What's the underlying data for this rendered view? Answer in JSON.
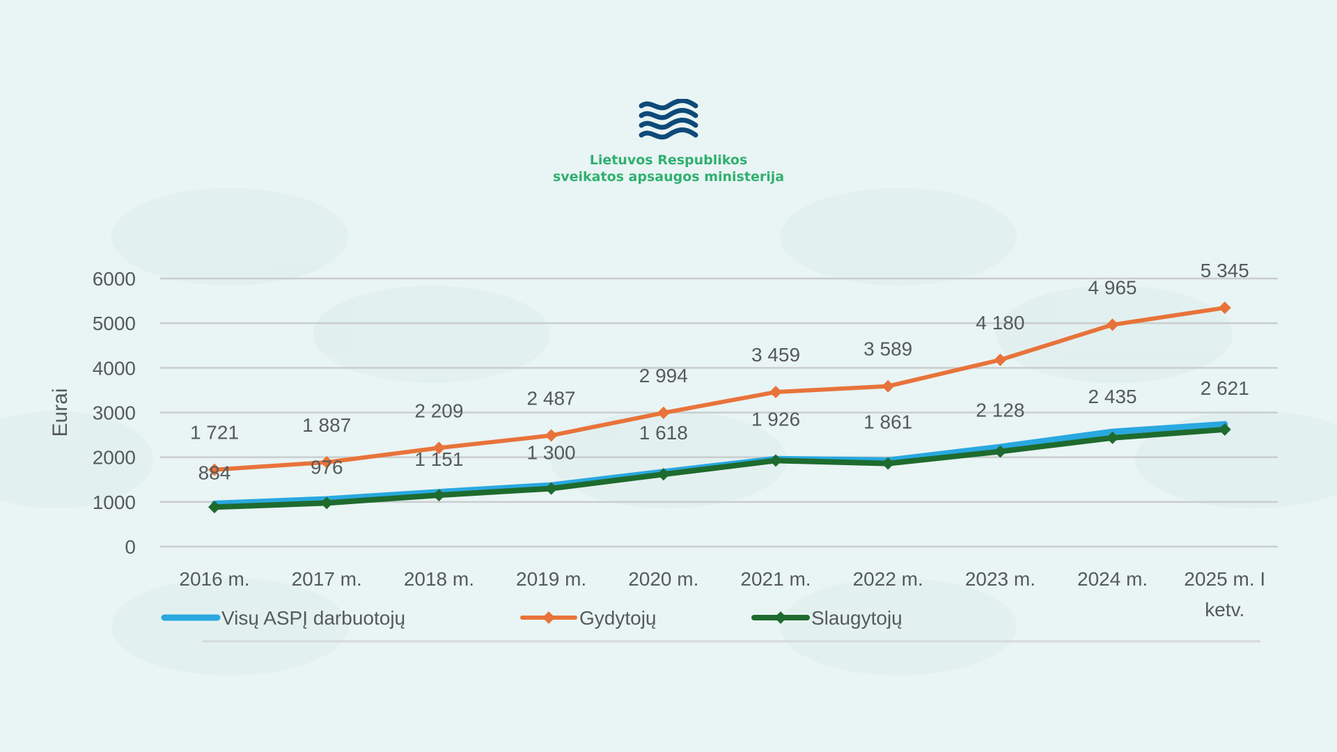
{
  "header": {
    "org_line1": "Lietuvos Respublikos",
    "org_line2": "sveikatos apsaugos ministerija",
    "logo_icon": "ministry-waves-logo"
  },
  "colors": {
    "background": "#e9f4f4",
    "accent_green": "#2fb070",
    "logo_blue": "#0d4a78",
    "series_all": "#29a8e0",
    "series_doctors": "#e8733a",
    "series_nurses": "#1e6b2e",
    "grid": "#c9cdcd",
    "text": "#555a5a"
  },
  "chart_data": {
    "type": "line",
    "ylabel": "Eurai",
    "xlabel": "",
    "ylim": [
      0,
      6000
    ],
    "y_ticks": [
      "6000",
      "5000",
      "4000",
      "3000",
      "2000",
      "1000",
      "0"
    ],
    "categories": [
      "2016 m.",
      "2017 m.",
      "2018 m.",
      "2019 m.",
      "2020 m.",
      "2021 m.",
      "2022 m.",
      "2023 m.",
      "2024 m.",
      "2025 m. I ketv."
    ],
    "series": [
      {
        "name": "Visų ASPĮ darbuotojų",
        "values": [
          960,
          1060,
          1220,
          1370,
          1670,
          1960,
          1930,
          2230,
          2570,
          2740
        ],
        "labels": []
      },
      {
        "name": "Gydytojų",
        "values": [
          1721,
          1887,
          2209,
          2487,
          2994,
          3459,
          3589,
          4180,
          4965,
          5345
        ],
        "labels": [
          "1 721",
          "1 887",
          "2 209",
          "2 487",
          "2 994",
          "3 459",
          "3 589",
          "4 180",
          "4 965",
          "5 345"
        ]
      },
      {
        "name": "Slaugytojų",
        "values": [
          884,
          976,
          1151,
          1300,
          1618,
          1926,
          1861,
          2128,
          2435,
          2621
        ],
        "labels": [
          "884",
          "976",
          "1 151",
          "1 300",
          "1 618",
          "1 926",
          "1 861",
          "2 128",
          "2 435",
          "2 621"
        ]
      }
    ],
    "grid": true,
    "legend_position": "bottom-left"
  }
}
